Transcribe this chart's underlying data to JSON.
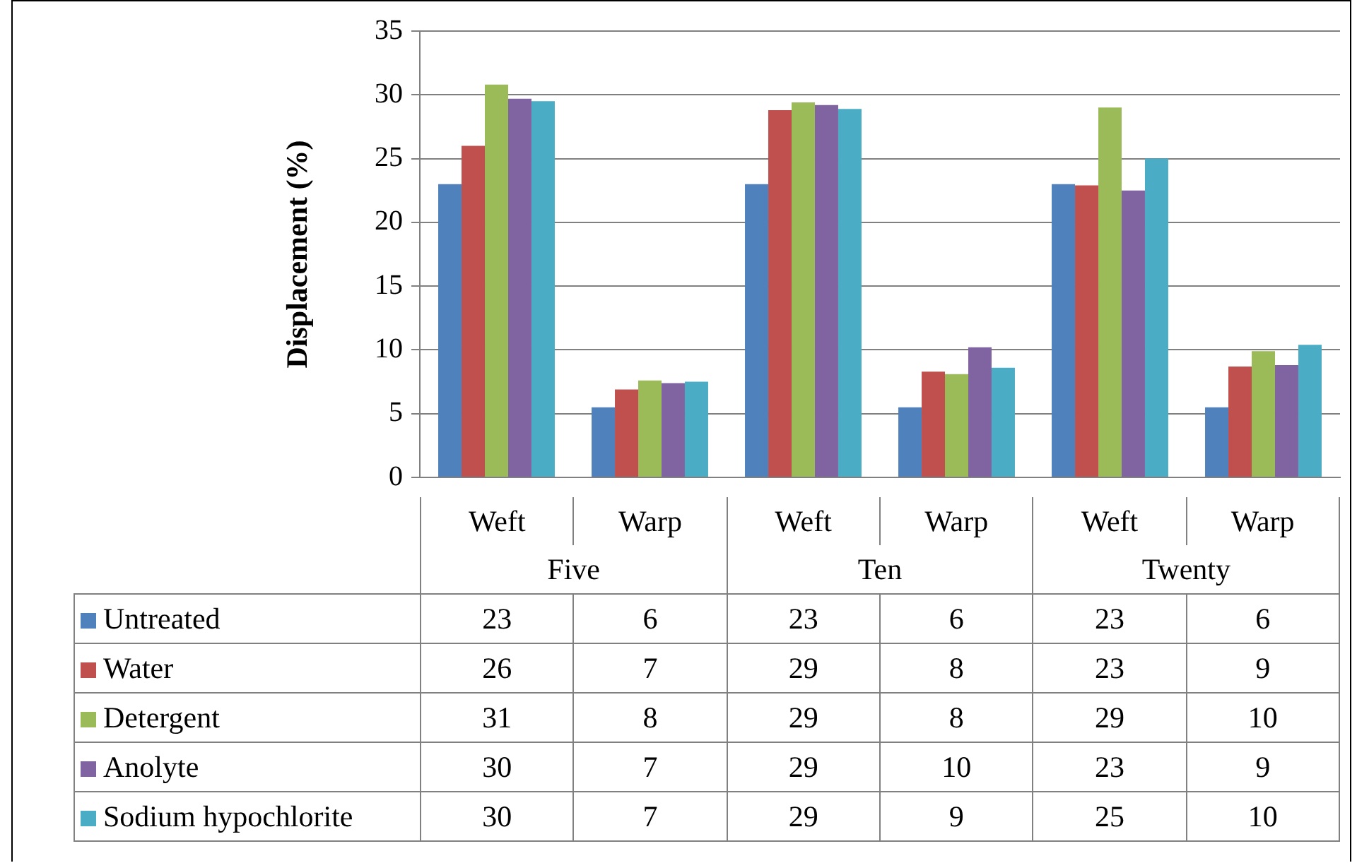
{
  "chart_data": {
    "type": "bar",
    "ylabel": "Displacement (%)",
    "categories": [
      "Weft",
      "Warp",
      "Weft",
      "Warp",
      "Weft",
      "Warp"
    ],
    "annotations": [
      "Five",
      "Ten",
      "Twenty"
    ],
    "ylim": [
      0,
      35
    ],
    "yticks": [
      0,
      5,
      10,
      15,
      20,
      25,
      30,
      35
    ],
    "grid": "y",
    "legend": "bottom",
    "series": [
      {
        "name": "Untreated",
        "color": "#4f81bd",
        "values": [
          23,
          5.5,
          23,
          5.5,
          23,
          5.5
        ],
        "value_labels": [
          "23",
          "6",
          "23",
          "6",
          "23",
          "6"
        ]
      },
      {
        "name": "Water",
        "color": "#c0504d",
        "values": [
          26,
          6.9,
          28.8,
          8.3,
          22.9,
          8.7
        ],
        "value_labels": [
          "26",
          "7",
          "29",
          "8",
          "23",
          "9"
        ]
      },
      {
        "name": "Detergent",
        "color": "#9bbb59",
        "values": [
          30.8,
          7.6,
          29.4,
          8.1,
          29,
          9.9
        ],
        "value_labels": [
          "31",
          "8",
          "29",
          "8",
          "29",
          "10"
        ]
      },
      {
        "name": "Anolyte",
        "color": "#8064a2",
        "values": [
          29.7,
          7.4,
          29.2,
          10.2,
          22.5,
          8.8
        ],
        "value_labels": [
          "30",
          "7",
          "29",
          "10",
          "23",
          "9"
        ]
      },
      {
        "name": "Sodium hypochlorite",
        "color": "#4bacc6",
        "values": [
          29.5,
          7.5,
          28.9,
          8.6,
          25,
          10.4
        ],
        "value_labels": [
          "30",
          "7",
          "29",
          "9",
          "25",
          "10"
        ]
      }
    ]
  }
}
